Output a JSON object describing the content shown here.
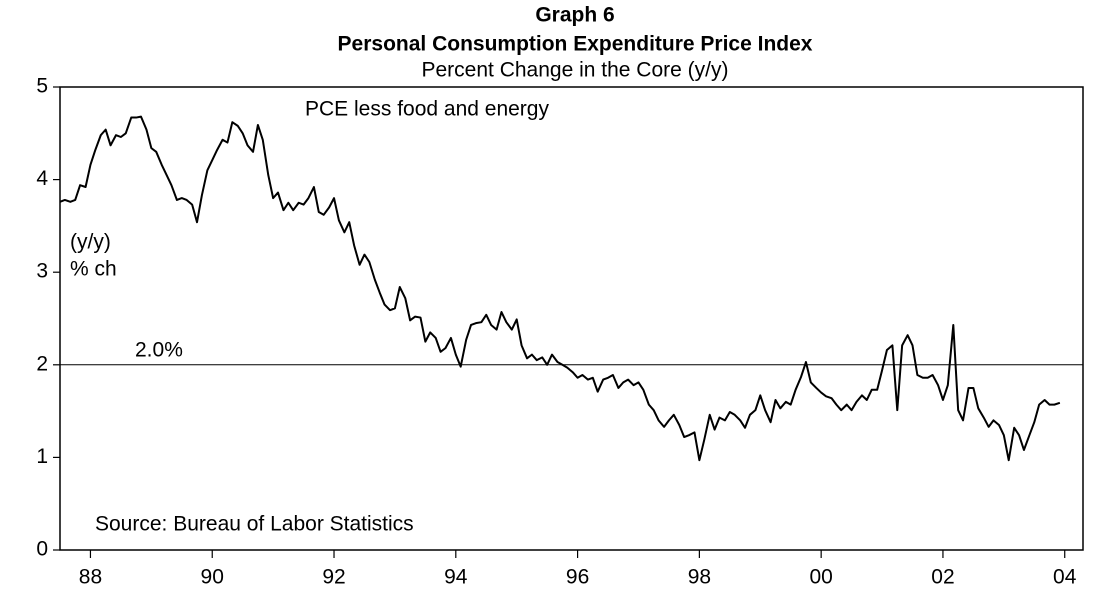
{
  "chart_data": {
    "type": "line",
    "title": "Graph 6",
    "subtitle": "Personal Consumption Expenditure Price Index",
    "subtitle2": "Percent Change in the Core (y/y)",
    "y_label": [
      "(y/y)",
      "% ch"
    ],
    "source": "Source: Bureau of Labor Statistics",
    "reference_line": {
      "value": 2,
      "label": "2.0%"
    },
    "x": [
      1987.5,
      1987.58,
      1987.67,
      1987.75,
      1987.83,
      1987.92,
      1988,
      1988.08,
      1988.17,
      1988.25,
      1988.33,
      1988.42,
      1988.5,
      1988.58,
      1988.67,
      1988.75,
      1988.83,
      1988.92,
      1989,
      1989.08,
      1989.17,
      1989.25,
      1989.33,
      1989.42,
      1989.5,
      1989.58,
      1989.67,
      1989.75,
      1989.83,
      1989.92,
      1990,
      1990.08,
      1990.17,
      1990.25,
      1990.33,
      1990.42,
      1990.5,
      1990.58,
      1990.67,
      1990.75,
      1990.83,
      1990.92,
      1991,
      1991.08,
      1991.17,
      1991.25,
      1991.33,
      1991.42,
      1991.5,
      1991.58,
      1991.67,
      1991.75,
      1991.83,
      1991.92,
      1992,
      1992.08,
      1992.17,
      1992.25,
      1992.33,
      1992.42,
      1992.5,
      1992.58,
      1992.67,
      1992.75,
      1992.83,
      1992.92,
      1993,
      1993.08,
      1993.17,
      1993.25,
      1993.33,
      1993.42,
      1993.5,
      1993.58,
      1993.67,
      1993.75,
      1993.83,
      1993.92,
      1994,
      1994.08,
      1994.17,
      1994.25,
      1994.33,
      1994.42,
      1994.5,
      1994.58,
      1994.67,
      1994.75,
      1994.83,
      1994.92,
      1995,
      1995.08,
      1995.17,
      1995.25,
      1995.33,
      1995.42,
      1995.5,
      1995.58,
      1995.67,
      1995.75,
      1995.83,
      1995.92,
      1996,
      1996.08,
      1996.17,
      1996.25,
      1996.33,
      1996.42,
      1996.5,
      1996.58,
      1996.67,
      1996.75,
      1996.83,
      1996.92,
      1997,
      1997.08,
      1997.17,
      1997.25,
      1997.33,
      1997.42,
      1997.5,
      1997.58,
      1997.67,
      1997.75,
      1997.83,
      1997.92,
      1998,
      1998.08,
      1998.17,
      1998.25,
      1998.33,
      1998.42,
      1998.5,
      1998.58,
      1998.67,
      1998.75,
      1998.83,
      1998.92,
      1999,
      1999.08,
      1999.17,
      1999.25,
      1999.33,
      1999.42,
      1999.5,
      1999.58,
      1999.67,
      1999.75,
      1999.83,
      1999.92,
      2000,
      2000.08,
      2000.17,
      2000.25,
      2000.33,
      2000.42,
      2000.5,
      2000.58,
      2000.67,
      2000.75,
      2000.83,
      2000.92,
      2001,
      2001.08,
      2001.17,
      2001.25,
      2001.33,
      2001.42,
      2001.5,
      2001.58,
      2001.67,
      2001.75,
      2001.83,
      2001.92,
      2002,
      2002.08,
      2002.17,
      2002.25,
      2002.33,
      2002.42,
      2002.5,
      2002.58,
      2002.67,
      2002.75,
      2002.83,
      2002.92,
      2003,
      2003.08,
      2003.17,
      2003.25,
      2003.33,
      2003.42,
      2003.5,
      2003.58,
      2003.67,
      2003.75,
      2003.83,
      2003.92
    ],
    "series": [
      {
        "name": "PCE less food and energy",
        "color": "#000000",
        "values": [
          3.76,
          3.78,
          3.76,
          3.78,
          3.94,
          3.92,
          4.16,
          4.32,
          4.48,
          4.54,
          4.37,
          4.48,
          4.46,
          4.5,
          4.67,
          4.67,
          4.68,
          4.54,
          4.34,
          4.3,
          4.16,
          4.05,
          3.94,
          3.78,
          3.8,
          3.78,
          3.73,
          3.54,
          3.83,
          4.1,
          4.21,
          4.32,
          4.43,
          4.4,
          4.62,
          4.58,
          4.5,
          4.37,
          4.3,
          4.59,
          4.43,
          4.05,
          3.8,
          3.86,
          3.67,
          3.75,
          3.67,
          3.75,
          3.73,
          3.8,
          3.92,
          3.65,
          3.62,
          3.7,
          3.8,
          3.56,
          3.43,
          3.54,
          3.29,
          3.08,
          3.19,
          3.11,
          2.92,
          2.78,
          2.65,
          2.59,
          2.61,
          2.84,
          2.72,
          2.48,
          2.52,
          2.51,
          2.25,
          2.35,
          2.29,
          2.14,
          2.18,
          2.29,
          2.11,
          1.98,
          2.27,
          2.43,
          2.45,
          2.46,
          2.54,
          2.43,
          2.38,
          2.57,
          2.46,
          2.38,
          2.49,
          2.21,
          2.07,
          2.11,
          2.05,
          2.08,
          2.0,
          2.11,
          2.03,
          2.0,
          1.97,
          1.92,
          1.86,
          1.89,
          1.84,
          1.86,
          1.71,
          1.84,
          1.86,
          1.89,
          1.75,
          1.81,
          1.84,
          1.78,
          1.81,
          1.73,
          1.57,
          1.51,
          1.4,
          1.33,
          1.4,
          1.46,
          1.35,
          1.22,
          1.24,
          1.27,
          0.97,
          1.19,
          1.46,
          1.3,
          1.43,
          1.4,
          1.49,
          1.46,
          1.4,
          1.32,
          1.46,
          1.51,
          1.67,
          1.51,
          1.38,
          1.62,
          1.53,
          1.6,
          1.57,
          1.73,
          1.87,
          2.03,
          1.81,
          1.75,
          1.7,
          1.66,
          1.64,
          1.57,
          1.51,
          1.57,
          1.51,
          1.6,
          1.67,
          1.62,
          1.73,
          1.73,
          1.94,
          2.16,
          2.21,
          1.51,
          2.21,
          2.32,
          2.21,
          1.89,
          1.86,
          1.86,
          1.89,
          1.78,
          1.62,
          1.78,
          2.43,
          1.51,
          1.4,
          1.75,
          1.75,
          1.53,
          1.43,
          1.33,
          1.4,
          1.35,
          1.24,
          0.97,
          1.32,
          1.24,
          1.08,
          1.24,
          1.38,
          1.57,
          1.62,
          1.57,
          1.57,
          1.59
        ]
      }
    ],
    "xlim": [
      1987.5,
      2004.3
    ],
    "xticks": [
      {
        "value": 1988,
        "label": "88"
      },
      {
        "value": 1990,
        "label": "90"
      },
      {
        "value": 1992,
        "label": "92"
      },
      {
        "value": 1994,
        "label": "94"
      },
      {
        "value": 1996,
        "label": "96"
      },
      {
        "value": 1998,
        "label": "98"
      },
      {
        "value": 2000,
        "label": "00"
      },
      {
        "value": 2002,
        "label": "02"
      },
      {
        "value": 2004,
        "label": "04"
      }
    ],
    "ylim": [
      0,
      5
    ],
    "yticks": [
      0,
      1,
      2,
      3,
      4,
      5
    ],
    "grid": false
  }
}
